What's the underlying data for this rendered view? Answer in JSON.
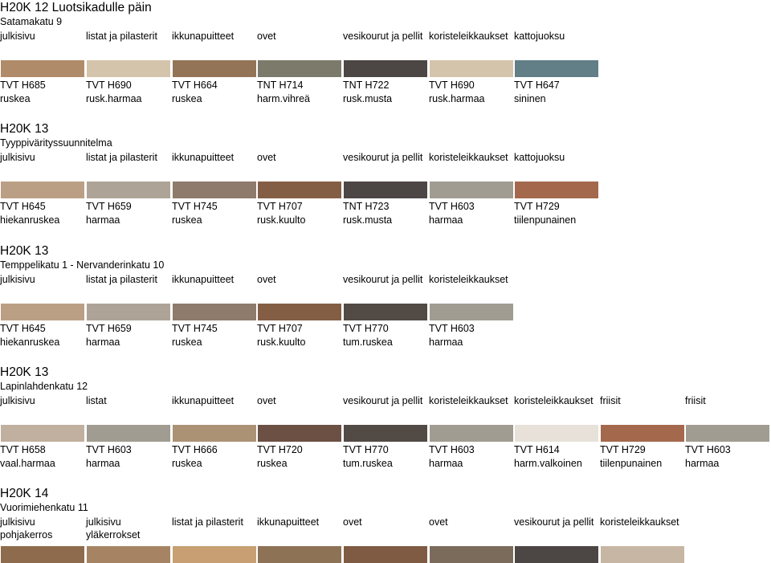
{
  "sections": [
    {
      "title": "H20K 12 Luotsikadulle päin",
      "subtitle": "Satamakatu 9",
      "labels": [
        "julkisivu",
        "listat ja pilasterit",
        "ikkunapuitteet",
        "ovet",
        "vesikourut ja pellit",
        "koristeleikkaukset",
        "kattojuoksu"
      ],
      "colors": [
        {
          "code": "TVT H685",
          "name": "ruskea",
          "hex": "#b08b6a"
        },
        {
          "code": "TVT H690",
          "name": "rusk.harmaa",
          "hex": "#d4c4ab"
        },
        {
          "code": "TVT H664",
          "name": "ruskea",
          "hex": "#947457"
        },
        {
          "code": "TNT H714",
          "name": "harm.vihreä",
          "hex": "#7c7a6a"
        },
        {
          "code": "TNT H722",
          "name": "rusk.musta",
          "hex": "#4c4644"
        },
        {
          "code": "TVT H690",
          "name": "rusk.harmaa",
          "hex": "#d4c4ab"
        },
        {
          "code": "TVT H647",
          "name": "sininen",
          "hex": "#627e87"
        }
      ]
    },
    {
      "title": "H20K 13",
      "subtitle": "Tyyppivärityssuunnitelma",
      "labels": [
        "julkisivu",
        "listat ja pilasterit",
        "ikkunapuitteet",
        "ovet",
        "vesikourut ja pellit",
        "koristeleikkaukset",
        "kattojuoksu"
      ],
      "colors": [
        {
          "code": "TVT H645",
          "name": "hiekanruskea",
          "hex": "#bb9f84"
        },
        {
          "code": "TVT H659",
          "name": "harmaa",
          "hex": "#ada397"
        },
        {
          "code": "TVT H745",
          "name": "ruskea",
          "hex": "#8e7b6c"
        },
        {
          "code": "TVT H707",
          "name": "rusk.kuulto",
          "hex": "#845e44"
        },
        {
          "code": "TNT H723",
          "name": "rusk.musta",
          "hex": "#4c4644"
        },
        {
          "code": "TVT H603",
          "name": "harmaa",
          "hex": "#a09c91"
        },
        {
          "code": "TVT H729",
          "name": "tiilenpunainen",
          "hex": "#a4694c"
        }
      ]
    },
    {
      "title": "H20K 13",
      "subtitle": "Temppelikatu 1 - Nervanderinkatu 10",
      "labels": [
        "julkisivu",
        "listat ja pilasterit",
        "ikkunapuitteet",
        "ovet",
        "vesikourut ja pellit",
        "koristeleikkaukset"
      ],
      "colors": [
        {
          "code": "TVT H645",
          "name": "hiekanruskea",
          "hex": "#bb9f84"
        },
        {
          "code": "TVT H659",
          "name": "harmaa",
          "hex": "#ada397"
        },
        {
          "code": "TVT H745",
          "name": "ruskea",
          "hex": "#8e7b6c"
        },
        {
          "code": "TVT H707",
          "name": "rusk.kuulto",
          "hex": "#845e44"
        },
        {
          "code": "TVT H770",
          "name": "tum.ruskea",
          "hex": "#524a45"
        },
        {
          "code": "TVT H603",
          "name": "harmaa",
          "hex": "#a09c91"
        }
      ]
    },
    {
      "title": "H20K 13",
      "subtitle": "Lapinlahdenkatu 12",
      "labels": [
        "julkisivu",
        "listat",
        "ikkunapuitteet",
        "ovet",
        "vesikourut ja pellit",
        "koristeleikkaukset",
        "koristeleikkaukset",
        "friisit",
        "friisit"
      ],
      "colors": [
        {
          "code": "TVT H658",
          "name": "vaal.harmaa",
          "hex": "#c1b09f"
        },
        {
          "code": "TVT H603",
          "name": "harmaa",
          "hex": "#a09c91"
        },
        {
          "code": "TVT H666",
          "name": "ruskea",
          "hex": "#ac9275"
        },
        {
          "code": "TVT H720",
          "name": "ruskea",
          "hex": "#6b5043"
        },
        {
          "code": "TVT H770",
          "name": "tum.ruskea",
          "hex": "#524a45"
        },
        {
          "code": "TVT H603",
          "name": "harmaa",
          "hex": "#a09c91"
        },
        {
          "code": "TVT H614",
          "name": "harm.valkoinen",
          "hex": "#e7e1da"
        },
        {
          "code": "TVT H729",
          "name": "tiilenpunainen",
          "hex": "#a4694c"
        },
        {
          "code": "TVT H603",
          "name": "harmaa",
          "hex": "#a09c91"
        }
      ]
    },
    {
      "title": "H20K 14",
      "subtitle": "Vuorimiehenkatu 11",
      "labels": [
        "julkisivu pohjakerros",
        "julkisivu yläkerrokset",
        "listat ja pilasterit",
        "ikkunapuitteet",
        "ovet",
        "ovet",
        "vesikourut ja pellit",
        "koristeleikkaukset"
      ],
      "colors": [
        {
          "hex": "#8e6b4c"
        },
        {
          "hex": "#a68463"
        },
        {
          "hex": "#c79f72"
        },
        {
          "hex": "#8e7256"
        },
        {
          "hex": "#7f5b43"
        },
        {
          "hex": "#7b6b5b"
        },
        {
          "hex": "#4c4644"
        },
        {
          "hex": "#c7b6a3"
        }
      ]
    }
  ]
}
